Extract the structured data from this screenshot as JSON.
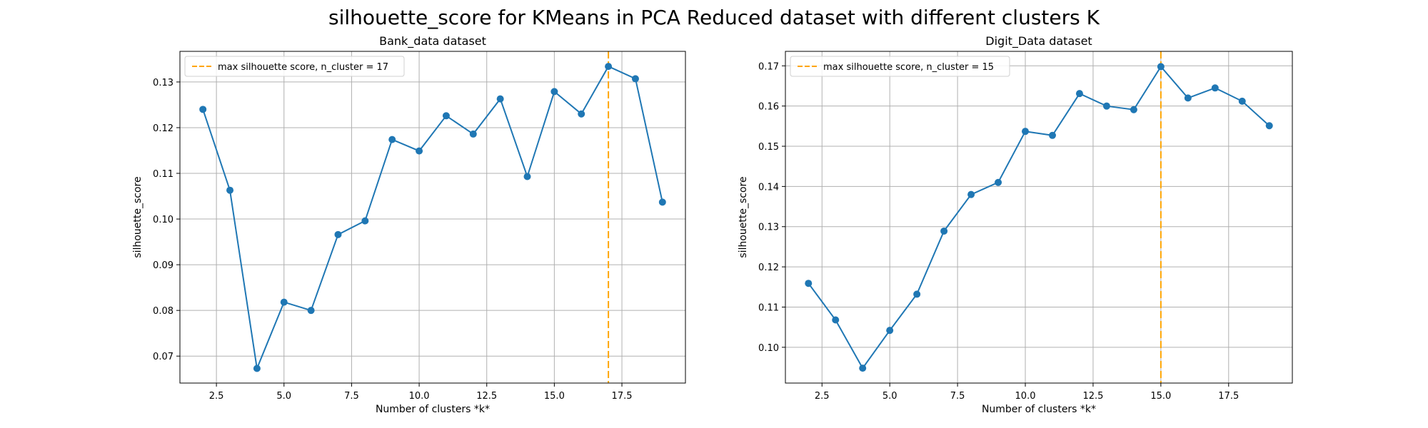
{
  "figure": {
    "title": "silhouette_score for KMeans in PCA Reduced dataset with different clusters K"
  },
  "chart_data": [
    {
      "type": "line",
      "title": "Bank_data dataset",
      "xlabel": "Number of clusters *k*",
      "ylabel": "silhouette_score",
      "x": [
        2,
        3,
        4,
        5,
        6,
        7,
        8,
        9,
        10,
        11,
        12,
        13,
        14,
        15,
        16,
        17,
        18,
        19
      ],
      "series": [
        {
          "values": [
            0.124,
            0.1063,
            0.0673,
            0.0818,
            0.08,
            0.0966,
            0.0996,
            0.1174,
            0.1149,
            0.1226,
            0.1186,
            0.1263,
            0.1093,
            0.1279,
            0.123,
            0.1334,
            0.1307,
            0.1037
          ],
          "color": "#1f77b4"
        }
      ],
      "xlim": [
        1.15,
        19.85
      ],
      "ylim": [
        0.0641,
        0.1367
      ],
      "xticks": [
        2.5,
        5.0,
        7.5,
        10.0,
        12.5,
        15.0,
        17.5
      ],
      "xtick_labels": [
        "2.5",
        "5.0",
        "7.5",
        "10.0",
        "12.5",
        "15.0",
        "17.5"
      ],
      "yticks": [
        0.07,
        0.08,
        0.09,
        0.1,
        0.11,
        0.12,
        0.13
      ],
      "ytick_labels": [
        "0.07",
        "0.08",
        "0.09",
        "0.10",
        "0.11",
        "0.12",
        "0.13"
      ],
      "vline": {
        "x": 17,
        "color": "#ffa500",
        "label": "max silhouette score, n_cluster = 17"
      },
      "grid": true,
      "legend": "upper-left"
    },
    {
      "type": "line",
      "title": "Digit_Data dataset",
      "xlabel": "Number of clusters *k*",
      "ylabel": "silhouette_score",
      "x": [
        2,
        3,
        4,
        5,
        6,
        7,
        8,
        9,
        10,
        11,
        12,
        13,
        14,
        15,
        16,
        17,
        18,
        19
      ],
      "series": [
        {
          "values": [
            0.1159,
            0.1068,
            0.0948,
            0.1042,
            0.1132,
            0.1289,
            0.138,
            0.141,
            0.1537,
            0.1527,
            0.1631,
            0.16,
            0.1591,
            0.1698,
            0.162,
            0.1645,
            0.1612,
            0.1551
          ],
          "color": "#1f77b4"
        }
      ],
      "xlim": [
        1.15,
        19.85
      ],
      "ylim": [
        0.0911,
        0.1736
      ],
      "xticks": [
        2.5,
        5.0,
        7.5,
        10.0,
        12.5,
        15.0,
        17.5
      ],
      "xtick_labels": [
        "2.5",
        "5.0",
        "7.5",
        "10.0",
        "12.5",
        "15.0",
        "17.5"
      ],
      "yticks": [
        0.1,
        0.11,
        0.12,
        0.13,
        0.14,
        0.15,
        0.16,
        0.17
      ],
      "ytick_labels": [
        "0.10",
        "0.11",
        "0.12",
        "0.13",
        "0.14",
        "0.15",
        "0.16",
        "0.17"
      ],
      "vline": {
        "x": 15,
        "color": "#ffa500",
        "label": "max silhouette score, n_cluster = 15"
      },
      "grid": true,
      "legend": "upper-left"
    }
  ]
}
